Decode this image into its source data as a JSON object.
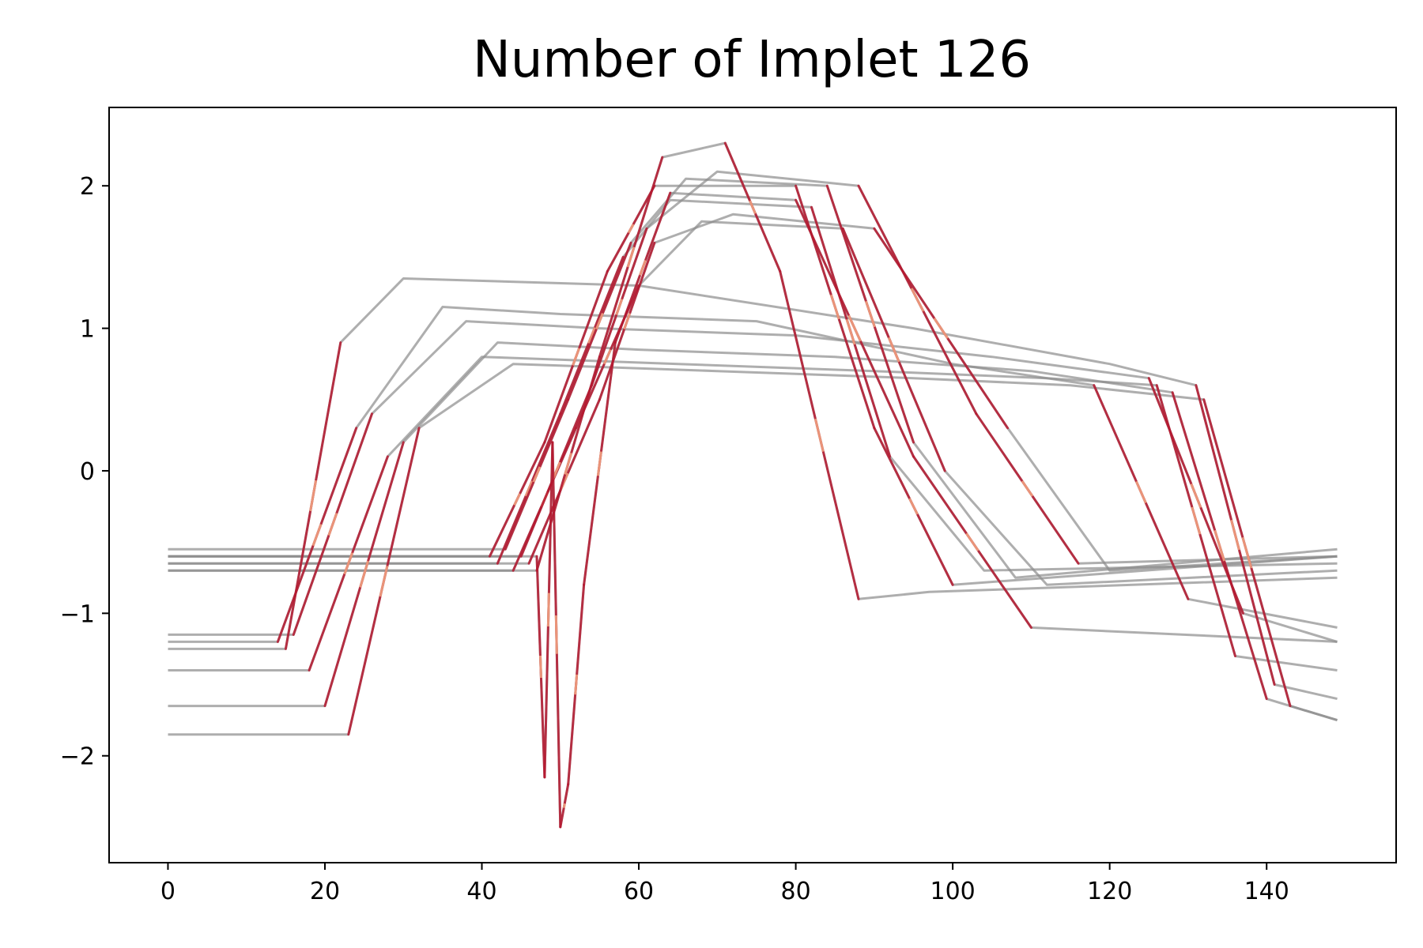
{
  "chart_data": {
    "type": "line",
    "title": "Number of Implet 126",
    "xlabel": "",
    "ylabel": "",
    "xlim": [
      -7.5,
      156.5
    ],
    "ylim": [
      -2.75,
      2.55
    ],
    "xticks": [
      0,
      20,
      40,
      60,
      80,
      100,
      120,
      140
    ],
    "yticks": [
      -2,
      -1,
      0,
      1,
      2
    ],
    "xtick_labels": [
      "0",
      "20",
      "40",
      "60",
      "80",
      "100",
      "120",
      "140"
    ],
    "ytick_labels": [
      "−2",
      "−1",
      "0",
      "1",
      "2"
    ],
    "grid": false,
    "legend": "none",
    "colors": {
      "background_series": "#8c8c8c",
      "implet_highlight": "#b5172f",
      "implet_light": "#f0a080"
    },
    "series": [
      {
        "x": [
          0,
          14,
          24,
          35,
          50,
          75,
          100,
          118,
          130,
          149
        ],
        "values": [
          -1.2,
          -1.2,
          0.3,
          1.15,
          1.1,
          1.05,
          0.75,
          0.6,
          -0.9,
          -1.1
        ]
      },
      {
        "x": [
          0,
          16,
          26,
          38,
          55,
          80,
          105,
          125,
          137,
          149
        ],
        "values": [
          -1.15,
          -1.15,
          0.4,
          1.05,
          1.0,
          0.95,
          0.8,
          0.65,
          -1.0,
          -1.2
        ]
      },
      {
        "x": [
          0,
          20,
          30,
          42,
          60,
          85,
          110,
          128,
          140,
          149
        ],
        "values": [
          -1.65,
          -1.65,
          0.2,
          0.9,
          0.85,
          0.8,
          0.7,
          0.55,
          -1.6,
          -1.75
        ]
      },
      {
        "x": [
          0,
          23,
          32,
          44,
          70,
          95,
          115,
          132,
          143,
          149
        ],
        "values": [
          -1.85,
          -1.85,
          0.3,
          0.75,
          0.7,
          0.65,
          0.6,
          0.5,
          -1.65,
          -1.75
        ]
      },
      {
        "x": [
          0,
          18,
          28,
          40,
          65,
          90,
          112,
          126,
          136,
          149
        ],
        "values": [
          -1.4,
          -1.4,
          0.1,
          0.8,
          0.75,
          0.7,
          0.65,
          0.6,
          -1.3,
          -1.4
        ]
      },
      {
        "x": [
          0,
          15,
          22,
          30,
          60,
          95,
          120,
          131,
          141,
          149
        ],
        "values": [
          -1.25,
          -1.25,
          0.9,
          1.35,
          1.3,
          1.0,
          0.75,
          0.6,
          -1.5,
          -1.6
        ]
      },
      {
        "x": [
          0,
          41,
          48,
          56,
          62,
          80,
          90,
          100,
          149
        ],
        "values": [
          -0.6,
          -0.6,
          0.2,
          1.4,
          2.0,
          2.0,
          0.3,
          -0.8,
          -0.6
        ]
      },
      {
        "x": [
          0,
          42,
          50,
          58,
          64,
          82,
          92,
          104,
          149
        ],
        "values": [
          -0.65,
          -0.65,
          0.4,
          1.5,
          1.9,
          1.85,
          0.1,
          -0.7,
          -0.65
        ]
      },
      {
        "x": [
          0,
          43,
          51,
          59,
          66,
          84,
          95,
          108,
          149
        ],
        "values": [
          -0.55,
          -0.55,
          0.5,
          1.6,
          2.05,
          2.0,
          0.2,
          -0.75,
          -0.55
        ]
      },
      {
        "x": [
          0,
          44,
          52,
          60,
          68,
          86,
          99,
          112,
          149
        ],
        "values": [
          -0.7,
          -0.7,
          0.3,
          1.3,
          1.75,
          1.7,
          0.0,
          -0.8,
          -0.7
        ]
      },
      {
        "x": [
          0,
          45,
          54,
          61,
          70,
          88,
          103,
          116,
          149
        ],
        "values": [
          -0.6,
          -0.6,
          0.6,
          1.7,
          2.1,
          2.0,
          0.4,
          -0.65,
          -0.6
        ]
      },
      {
        "x": [
          0,
          46,
          55,
          62,
          72,
          90,
          107,
          120,
          149
        ],
        "values": [
          -0.65,
          -0.65,
          0.5,
          1.6,
          1.8,
          1.7,
          0.3,
          -0.7,
          -0.6
        ]
      },
      {
        "x": [
          0,
          47,
          55,
          63,
          71,
          78,
          88,
          97,
          149
        ],
        "values": [
          -0.7,
          -0.7,
          0.8,
          2.2,
          2.3,
          1.4,
          -0.9,
          -0.85,
          -0.75
        ]
      },
      {
        "x": [
          0,
          47,
          48,
          49,
          50,
          51,
          53,
          57,
          64,
          80,
          95,
          110,
          149
        ],
        "values": [
          -0.6,
          -0.6,
          -2.15,
          0.2,
          -2.5,
          -2.2,
          -0.8,
          0.9,
          1.95,
          1.9,
          0.1,
          -1.1,
          -1.2
        ]
      }
    ]
  }
}
